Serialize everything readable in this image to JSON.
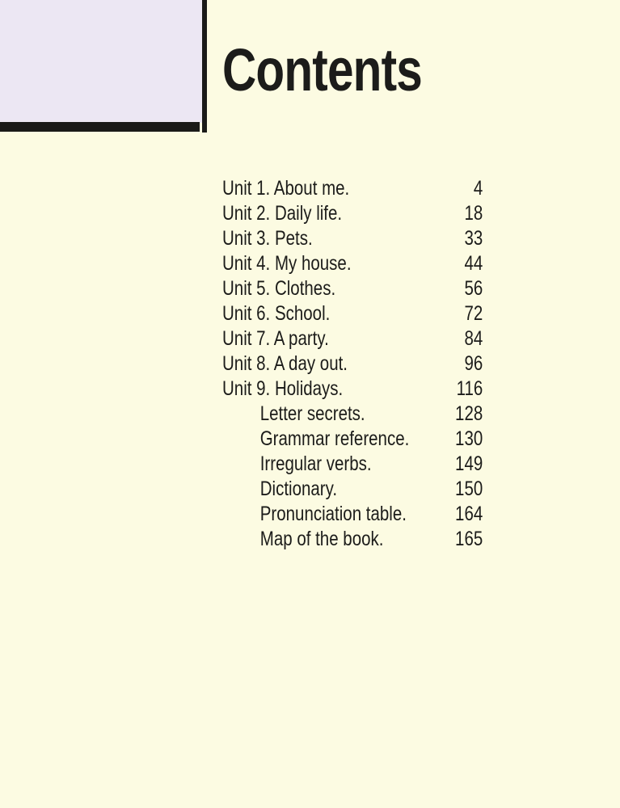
{
  "page": {
    "title": "Contents"
  },
  "theme": {
    "background_color": "#fcfbe2",
    "corner_box_color": "#ece7f3",
    "ink_color": "#1a1a18",
    "text_color": "#1c1c1a"
  },
  "toc": {
    "entries": [
      {
        "label": "Unit 1. About me.",
        "page": "4",
        "indent": false
      },
      {
        "label": "Unit 2. Daily life.",
        "page": "18",
        "indent": false
      },
      {
        "label": "Unit 3. Pets.",
        "page": "33",
        "indent": false
      },
      {
        "label": "Unit 4. My house.",
        "page": "44",
        "indent": false
      },
      {
        "label": "Unit 5. Clothes.",
        "page": "56",
        "indent": false
      },
      {
        "label": "Unit 6. School.",
        "page": "72",
        "indent": false
      },
      {
        "label": "Unit 7. A party.",
        "page": "84",
        "indent": false
      },
      {
        "label": "Unit 8. A day out.",
        "page": "96",
        "indent": false
      },
      {
        "label": "Unit 9. Holidays.",
        "page": "116",
        "indent": false
      },
      {
        "label": "Letter secrets.",
        "page": "128",
        "indent": true
      },
      {
        "label": "Grammar reference.",
        "page": "130",
        "indent": true
      },
      {
        "label": "Irregular verbs.",
        "page": "149",
        "indent": true
      },
      {
        "label": "Dictionary.",
        "page": "150",
        "indent": true
      },
      {
        "label": "Pronunciation table.",
        "page": "164",
        "indent": true
      },
      {
        "label": "Map of the book.",
        "page": "165",
        "indent": true
      }
    ]
  }
}
